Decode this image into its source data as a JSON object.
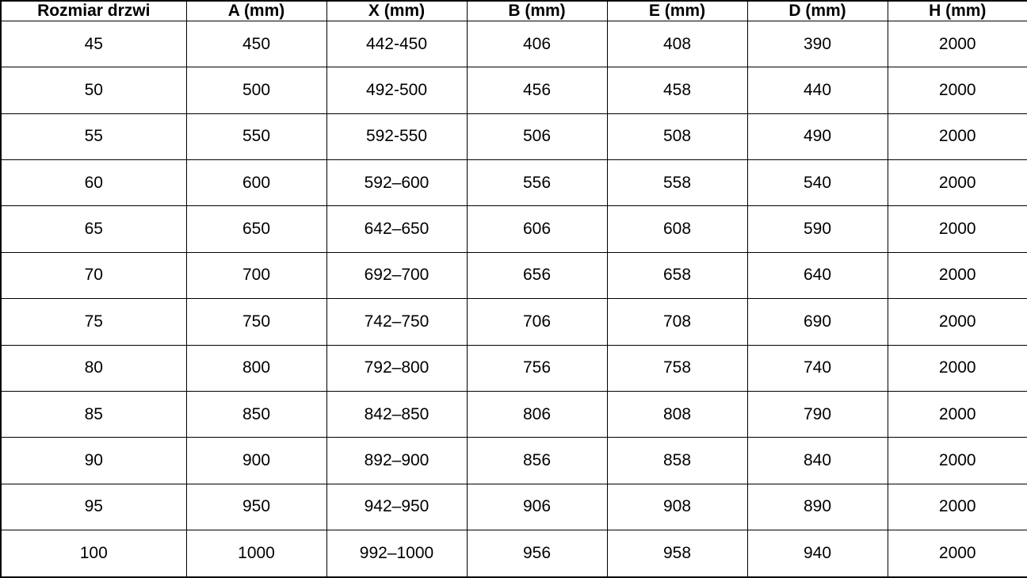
{
  "chart_data": {
    "type": "table",
    "title": "",
    "columns": [
      "Rozmiar drzwi",
      "A (mm)",
      "X (mm)",
      "B (mm)",
      "E (mm)",
      "D (mm)",
      "H (mm)"
    ],
    "rows": [
      [
        "45",
        "450",
        "442-450",
        "406",
        "408",
        "390",
        "2000"
      ],
      [
        "50",
        "500",
        "492-500",
        "456",
        "458",
        "440",
        "2000"
      ],
      [
        "55",
        "550",
        "592-550",
        "506",
        "508",
        "490",
        "2000"
      ],
      [
        "60",
        "600",
        "592–600",
        "556",
        "558",
        "540",
        "2000"
      ],
      [
        "65",
        "650",
        "642–650",
        "606",
        "608",
        "590",
        "2000"
      ],
      [
        "70",
        "700",
        "692–700",
        "656",
        "658",
        "640",
        "2000"
      ],
      [
        "75",
        "750",
        "742–750",
        "706",
        "708",
        "690",
        "2000"
      ],
      [
        "80",
        "800",
        "792–800",
        "756",
        "758",
        "740",
        "2000"
      ],
      [
        "85",
        "850",
        "842–850",
        "806",
        "808",
        "790",
        "2000"
      ],
      [
        "90",
        "900",
        "892–900",
        "856",
        "858",
        "840",
        "2000"
      ],
      [
        "95",
        "950",
        "942–950",
        "906",
        "908",
        "890",
        "2000"
      ],
      [
        "100",
        "1000",
        "992–1000",
        "956",
        "958",
        "940",
        "2000"
      ]
    ],
    "style": {
      "border_color": "#000000",
      "background_color": "#ffffff",
      "text_color": "#000000",
      "header_bold": true,
      "grid": "all"
    }
  }
}
